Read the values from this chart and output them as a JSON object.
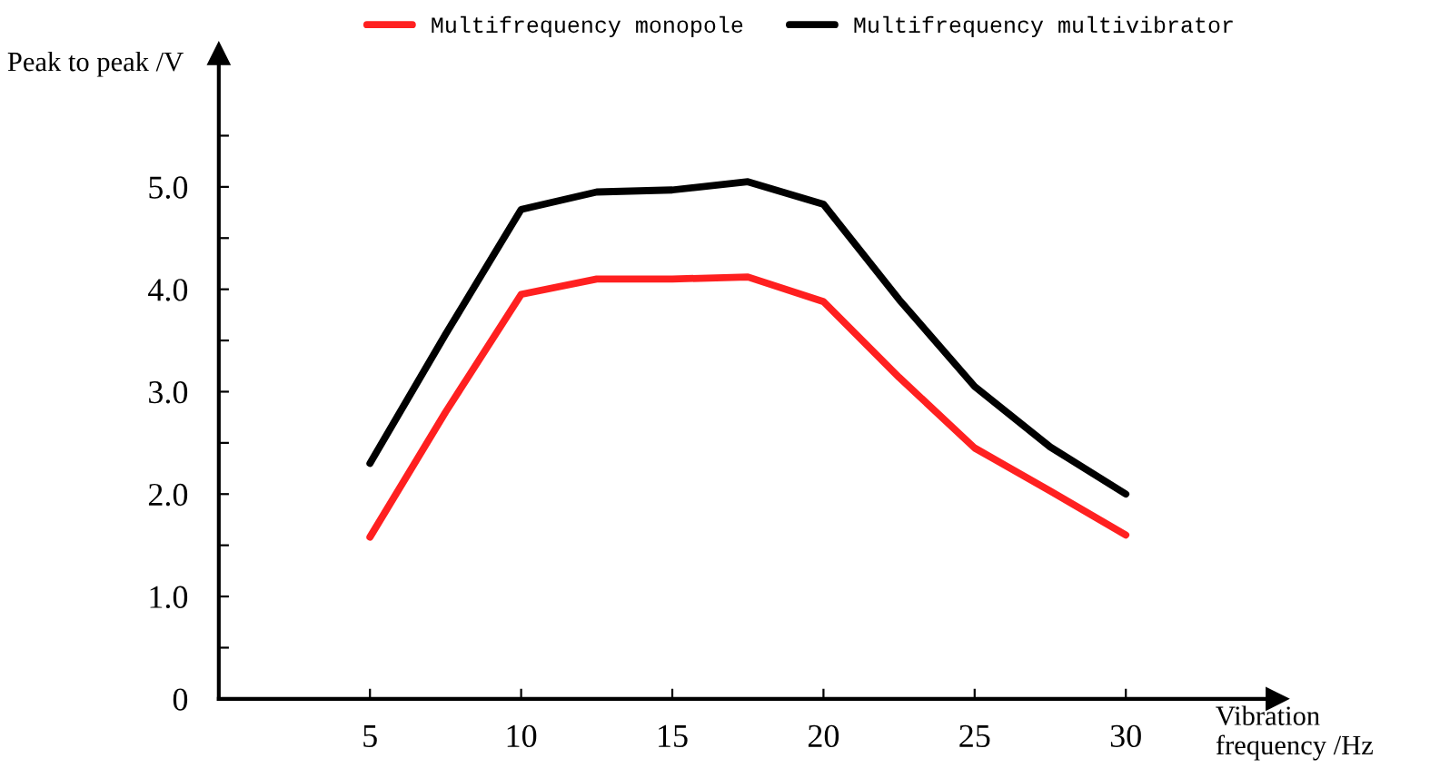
{
  "chart_data": {
    "type": "line",
    "xlabel": "Vibration frequency /Hz",
    "ylabel": "Peak to peak /V",
    "x": [
      5,
      7.5,
      10,
      12.5,
      15,
      17.5,
      20,
      22.5,
      25,
      27.5,
      30
    ],
    "series": [
      {
        "name": "Multifrequency monopole",
        "color": "#ff2020",
        "values": [
          1.58,
          2.8,
          3.95,
          4.1,
          4.1,
          4.12,
          3.88,
          3.14,
          2.45,
          2.03,
          1.6
        ]
      },
      {
        "name": "Multifrequency multivibrator",
        "color": "#000000",
        "values": [
          2.3,
          3.56,
          4.78,
          4.95,
          4.97,
          5.05,
          4.83,
          3.9,
          3.05,
          2.46,
          2.0
        ]
      }
    ],
    "xlim": [
      0,
      35
    ],
    "ylim": [
      0,
      6.3
    ],
    "xticks": [
      5,
      10,
      15,
      20,
      25,
      30
    ],
    "yticks": [
      {
        "value": 0,
        "label": "0"
      },
      {
        "value": 0.5,
        "label": null
      },
      {
        "value": 1,
        "label": "1.0"
      },
      {
        "value": 1.5,
        "label": null
      },
      {
        "value": 2,
        "label": "2.0"
      },
      {
        "value": 2.5,
        "label": null
      },
      {
        "value": 3,
        "label": "3.0"
      },
      {
        "value": 3.5,
        "label": null
      },
      {
        "value": 4,
        "label": "4.0"
      },
      {
        "value": 4.5,
        "label": null
      },
      {
        "value": 5,
        "label": "5.0"
      },
      {
        "value": 5.5,
        "label": null
      }
    ],
    "grid": false,
    "legend": "top",
    "marker": "none",
    "line_style": "solid"
  }
}
